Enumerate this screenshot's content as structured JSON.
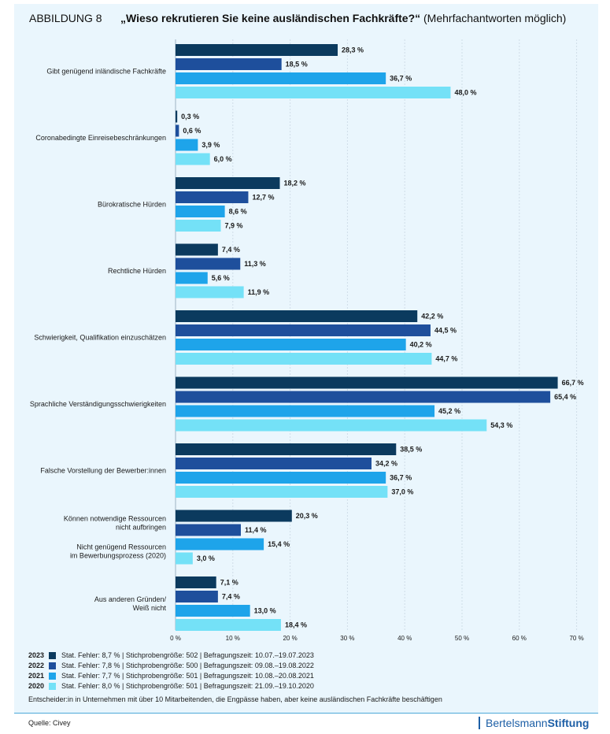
{
  "header": {
    "figure_label": "ABBILDUNG 8",
    "title_bold": "„Wieso rekrutieren Sie keine ausländischen Fachkräfte?“",
    "title_note": " (Mehrfachantworten möglich)"
  },
  "chart_data": {
    "type": "bar",
    "orientation": "horizontal",
    "title": "„Wieso rekrutieren Sie keine ausländischen Fachkräfte?“ (Mehrfachantworten möglich)",
    "xlim": [
      0,
      70
    ],
    "ticks": [
      0,
      10,
      20,
      30,
      40,
      50,
      60,
      70
    ],
    "tick_labels": [
      "0 %",
      "10 %",
      "20 %",
      "30 %",
      "40 %",
      "50 %",
      "60 %",
      "70 %"
    ],
    "groups": [
      {
        "label": [
          "Gibt genügend inländische Fachkräfte"
        ],
        "values": [
          28.3,
          18.5,
          36.7,
          48.0
        ],
        "value_labels": [
          "28,3 %",
          "18,5 %",
          "36,7 %",
          "48,0 %"
        ]
      },
      {
        "label": [
          "Coronabedingte Einreisebeschränkungen"
        ],
        "values": [
          0.3,
          0.6,
          3.9,
          6.0
        ],
        "value_labels": [
          "0,3 %",
          "0,6 %",
          "3,9 %",
          "6,0 %"
        ]
      },
      {
        "label": [
          "Bürokratische Hürden"
        ],
        "values": [
          18.2,
          12.7,
          8.6,
          7.9
        ],
        "value_labels": [
          "18,2 %",
          "12,7 %",
          "8,6 %",
          "7,9 %"
        ]
      },
      {
        "label": [
          "Rechtliche Hürden"
        ],
        "values": [
          7.4,
          11.3,
          5.6,
          11.9
        ],
        "value_labels": [
          "7,4 %",
          "11,3 %",
          "5,6 %",
          "11,9 %"
        ]
      },
      {
        "label": [
          "Schwierigkeit, Qualifikation einzuschätzen"
        ],
        "values": [
          42.2,
          44.5,
          40.2,
          44.7
        ],
        "value_labels": [
          "42,2 %",
          "44,5 %",
          "40,2 %",
          "44,7 %"
        ]
      },
      {
        "label": [
          "Sprachliche Verständigungsschwierigkeiten"
        ],
        "values": [
          66.7,
          65.4,
          45.2,
          54.3
        ],
        "value_labels": [
          "66,7 %",
          "65,4 %",
          "45,2 %",
          "54,3 %"
        ]
      },
      {
        "label": [
          "Falsche Vorstellung der Bewerber:innen"
        ],
        "values": [
          38.5,
          34.2,
          36.7,
          37.0
        ],
        "value_labels": [
          "38,5 %",
          "34,2 %",
          "36,7 %",
          "37,0 %"
        ]
      },
      {
        "label": [
          "Können notwendige Ressourcen",
          "nicht aufbringen"
        ],
        "label2": [
          "Nicht genügend Ressourcen",
          "im Bewerbungsprozess (2020)"
        ],
        "values": [
          20.3,
          11.4,
          15.4,
          3.0
        ],
        "value_labels": [
          "20,3 %",
          "11,4 %",
          "15,4 %",
          "3,0 %"
        ]
      },
      {
        "label": [
          "Aus anderen Gründen/",
          "Weiß nicht"
        ],
        "values": [
          7.1,
          7.4,
          13.0,
          18.4
        ],
        "value_labels": [
          "7,1 %",
          "7,4 %",
          "13,0 %",
          "18,4 %"
        ]
      }
    ],
    "series": [
      {
        "name": "2023",
        "color": "#0b3a5e",
        "info": "Stat. Fehler: 8,7 % | Stichprobengröße: 502 | Befragungszeit: 10.07.–19.07.2023"
      },
      {
        "name": "2022",
        "color": "#1e4f9c",
        "info": "Stat. Fehler: 7,8 % | Stichprobengröße: 500 | Befragungszeit: 09.08.–19.08.2022"
      },
      {
        "name": "2021",
        "color": "#1ea4ea",
        "info": "Stat. Fehler: 7,7 % | Stichprobengröße: 501 | Befragungszeit: 10.08.–20.08.2021"
      },
      {
        "name": "2020",
        "color": "#74e1f7",
        "info": "Stat. Fehler: 8,0 % | Stichprobengröße: 501 | Befragungszeit: 21.09.–19.10.2020"
      }
    ]
  },
  "universe_note": "Entscheider:in in Unternehmen mit über 10 Mitarbeitenden, die Engpässe haben, aber keine ausländischen Fachkräfte beschäftigen",
  "footer": {
    "source": "Quelle: Civey",
    "brand_light": "Bertelsmann",
    "brand_bold": "Stiftung"
  }
}
